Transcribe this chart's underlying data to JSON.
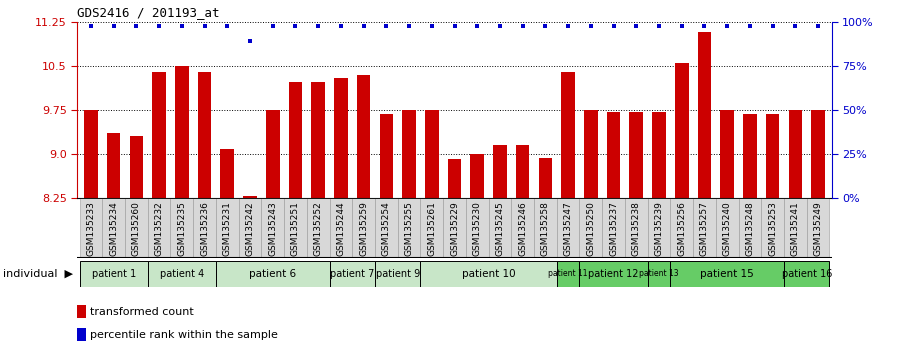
{
  "title": "GDS2416 / 201193_at",
  "samples": [
    "GSM135233",
    "GSM135234",
    "GSM135260",
    "GSM135232",
    "GSM135235",
    "GSM135236",
    "GSM135231",
    "GSM135242",
    "GSM135243",
    "GSM135251",
    "GSM135252",
    "GSM135244",
    "GSM135259",
    "GSM135254",
    "GSM135255",
    "GSM135261",
    "GSM135229",
    "GSM135230",
    "GSM135245",
    "GSM135246",
    "GSM135258",
    "GSM135247",
    "GSM135250",
    "GSM135237",
    "GSM135238",
    "GSM135239",
    "GSM135256",
    "GSM135257",
    "GSM135240",
    "GSM135248",
    "GSM135253",
    "GSM135241",
    "GSM135249"
  ],
  "bar_values": [
    9.75,
    9.35,
    9.3,
    10.4,
    10.5,
    10.4,
    9.08,
    8.28,
    9.75,
    10.22,
    10.22,
    10.3,
    10.35,
    9.68,
    9.75,
    9.75,
    8.92,
    9.0,
    9.15,
    9.16,
    8.93,
    10.4,
    9.75,
    9.72,
    9.72,
    9.72,
    10.55,
    11.08,
    9.75,
    9.68,
    9.68,
    9.75,
    9.75
  ],
  "percentile_y_values": [
    11.18,
    11.18,
    11.18,
    11.18,
    11.18,
    11.18,
    11.18,
    10.92,
    11.18,
    11.18,
    11.18,
    11.18,
    11.18,
    11.18,
    11.18,
    11.18,
    11.18,
    11.18,
    11.18,
    11.18,
    11.18,
    11.18,
    11.18,
    11.18,
    11.18,
    11.18,
    11.18,
    11.18,
    11.18,
    11.18,
    11.18,
    11.18,
    11.18
  ],
  "ylim": [
    8.25,
    11.25
  ],
  "yticks": [
    8.25,
    9.0,
    9.75,
    10.5,
    11.25
  ],
  "right_yticks": [
    0,
    25,
    50,
    75,
    100
  ],
  "bar_color": "#cc0000",
  "dot_color": "#0000cc",
  "patients": [
    {
      "label": "patient 1",
      "start": 0,
      "end": 2,
      "color": "#c8e6c8"
    },
    {
      "label": "patient 4",
      "start": 3,
      "end": 5,
      "color": "#c8e6c8"
    },
    {
      "label": "patient 6",
      "start": 6,
      "end": 10,
      "color": "#c8e6c8"
    },
    {
      "label": "patient 7",
      "start": 11,
      "end": 12,
      "color": "#c8e6c8"
    },
    {
      "label": "patient 9",
      "start": 13,
      "end": 14,
      "color": "#c8e6c8"
    },
    {
      "label": "patient 10",
      "start": 15,
      "end": 20,
      "color": "#c8e6c8"
    },
    {
      "label": "patient 11",
      "start": 21,
      "end": 21,
      "color": "#66cc66"
    },
    {
      "label": "patient 12",
      "start": 22,
      "end": 24,
      "color": "#66cc66"
    },
    {
      "label": "patient 13",
      "start": 25,
      "end": 25,
      "color": "#66cc66"
    },
    {
      "label": "patient 15",
      "start": 26,
      "end": 30,
      "color": "#66cc66"
    },
    {
      "label": "patient 16",
      "start": 31,
      "end": 32,
      "color": "#66cc66"
    }
  ],
  "tick_label_bg": "#d8d8d8",
  "legend_items": [
    {
      "color": "#cc0000",
      "label": "transformed count"
    },
    {
      "color": "#0000cc",
      "label": "percentile rank within the sample"
    }
  ]
}
